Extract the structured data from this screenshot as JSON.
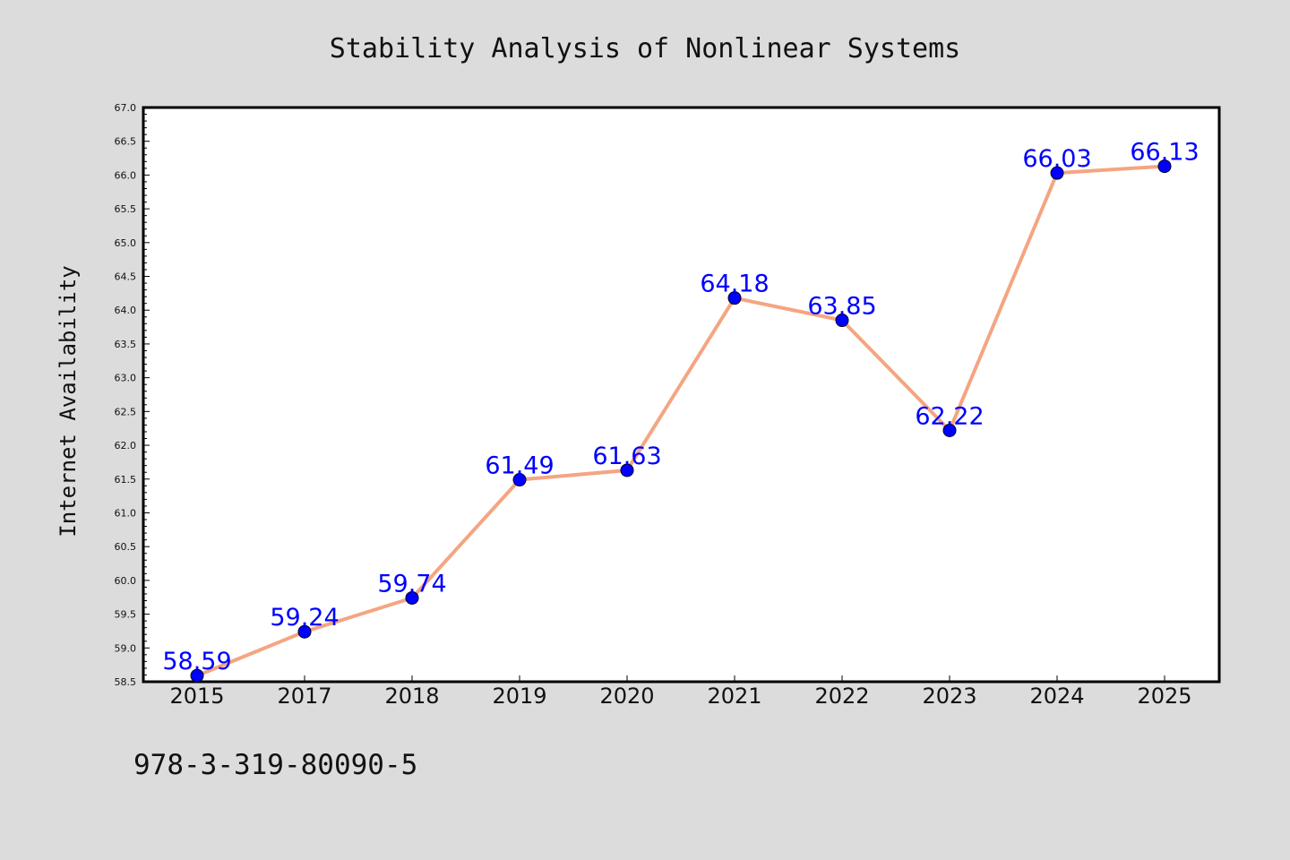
{
  "chart_data": {
    "type": "line",
    "title": "Stability Analysis of Nonlinear Systems",
    "xlabel": "",
    "ylabel": "Internet Availability",
    "categories": [
      "2015",
      "2017",
      "2018",
      "2019",
      "2020",
      "2021",
      "2022",
      "2023",
      "2024",
      "2025"
    ],
    "series": [
      {
        "values": [
          58.59,
          59.24,
          59.74,
          61.49,
          61.63,
          64.18,
          63.85,
          62.22,
          66.03,
          66.13
        ],
        "labels": [
          "58.59",
          "59.24",
          "59.74",
          "61.49",
          "61.63",
          "64.18",
          "63.85",
          "62.22",
          "66.03",
          "66.13"
        ]
      }
    ],
    "ylim": [
      58.5,
      67.0
    ],
    "yticks": [
      "58.5",
      "59.0",
      "59.5",
      "60.0",
      "60.5",
      "61.0",
      "61.5",
      "62.0",
      "62.5",
      "63.0",
      "63.5",
      "64.0",
      "64.5",
      "65.0",
      "65.5",
      "66.0",
      "66.5",
      "67.0"
    ],
    "grid": false,
    "legend": "none"
  },
  "footer": {
    "isbn": "978-3-319-80090-5"
  },
  "colors": {
    "background": "#dcdcdc",
    "plot_area": "#ffffff",
    "line": "#f4a582",
    "marker": "#0000ff",
    "data_label": "#0000ff"
  }
}
